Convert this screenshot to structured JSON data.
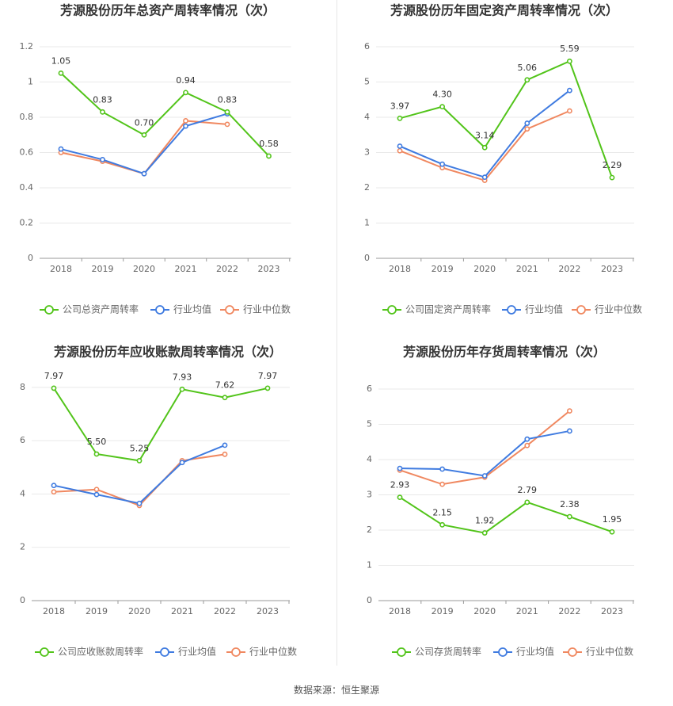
{
  "source": "数据来源：恒生聚源",
  "legend_labels": [
    "行业均值",
    "行业中位数"
  ],
  "colors": {
    "company": "#52c41a",
    "avg": "#3f7be0",
    "median": "#f08860",
    "grid": "#e9e9e9",
    "axis": "#999999",
    "text": "#666666",
    "title": "#333333"
  },
  "chart_data": [
    {
      "type": "line",
      "title": "芳源股份历年总资产周转率情况（次）",
      "categories": [
        "2018",
        "2019",
        "2020",
        "2021",
        "2022",
        "2023"
      ],
      "ylim": [
        0,
        1.2
      ],
      "yticks": [
        "0",
        "0.2",
        "0.4",
        "0.6",
        "0.8",
        "1",
        "1.2"
      ],
      "series": [
        {
          "name": "公司总资产周转率",
          "values": [
            1.05,
            0.83,
            0.7,
            0.94,
            0.83,
            0.58
          ],
          "labels": [
            "1.05",
            "0.83",
            "0.70",
            "0.94",
            "0.83",
            "0.58"
          ]
        },
        {
          "name": "行业均值",
          "values": [
            0.62,
            0.56,
            0.48,
            0.75,
            0.82,
            null
          ]
        },
        {
          "name": "行业中位数",
          "values": [
            0.6,
            0.55,
            0.48,
            0.78,
            0.76,
            null
          ]
        }
      ],
      "grid": true,
      "legend": "bottom"
    },
    {
      "type": "line",
      "title": "芳源股份历年固定资产周转率情况（次）",
      "categories": [
        "2018",
        "2019",
        "2020",
        "2021",
        "2022",
        "2023"
      ],
      "ylim": [
        0,
        6
      ],
      "yticks": [
        "0",
        "1",
        "2",
        "3",
        "4",
        "5",
        "6"
      ],
      "series": [
        {
          "name": "公司固定资产周转率",
          "values": [
            3.97,
            4.3,
            3.14,
            5.06,
            5.59,
            2.29
          ],
          "labels": [
            "3.97",
            "4.30",
            "3.14",
            "5.06",
            "5.59",
            "2.29"
          ]
        },
        {
          "name": "行业均值",
          "values": [
            3.18,
            2.67,
            2.3,
            3.83,
            4.76,
            null
          ]
        },
        {
          "name": "行业中位数",
          "values": [
            3.05,
            2.57,
            2.21,
            3.67,
            4.18,
            null
          ]
        }
      ],
      "grid": true,
      "legend": "bottom"
    },
    {
      "type": "line",
      "title": "芳源股份历年应收账款周转率情况（次）",
      "categories": [
        "2018",
        "2019",
        "2020",
        "2021",
        "2022",
        "2023"
      ],
      "ylim": [
        0,
        8.8
      ],
      "yticks": [
        "0",
        "2",
        "4",
        "6",
        "8"
      ],
      "series": [
        {
          "name": "公司应收账款周转率",
          "values": [
            7.97,
            5.5,
            5.25,
            7.93,
            7.62,
            7.97
          ],
          "labels": [
            "7.97",
            "5.50",
            "5.25",
            "7.93",
            "7.62",
            "7.97"
          ]
        },
        {
          "name": "行业均值",
          "values": [
            4.32,
            3.98,
            3.65,
            5.18,
            5.83,
            null
          ]
        },
        {
          "name": "行业中位数",
          "values": [
            4.08,
            4.17,
            3.57,
            5.25,
            5.49,
            null
          ]
        }
      ],
      "grid": true,
      "legend": "bottom"
    },
    {
      "type": "line",
      "title": "芳源股份历年存货周转率情况（次）",
      "categories": [
        "2018",
        "2019",
        "2020",
        "2021",
        "2022",
        "2023"
      ],
      "ylim": [
        0,
        6
      ],
      "yticks": [
        "0",
        "1",
        "2",
        "3",
        "4",
        "5",
        "6"
      ],
      "series": [
        {
          "name": "公司存货周转率",
          "values": [
            2.93,
            2.15,
            1.92,
            2.79,
            2.38,
            1.95
          ],
          "labels": [
            "2.93",
            "2.15",
            "1.92",
            "2.79",
            "2.38",
            "1.95"
          ]
        },
        {
          "name": "行业均值",
          "values": [
            3.75,
            3.73,
            3.54,
            4.58,
            4.81,
            null
          ]
        },
        {
          "name": "行业中位数",
          "values": [
            3.7,
            3.3,
            3.5,
            4.4,
            5.38,
            null
          ]
        }
      ],
      "grid": true,
      "legend": "bottom"
    }
  ]
}
